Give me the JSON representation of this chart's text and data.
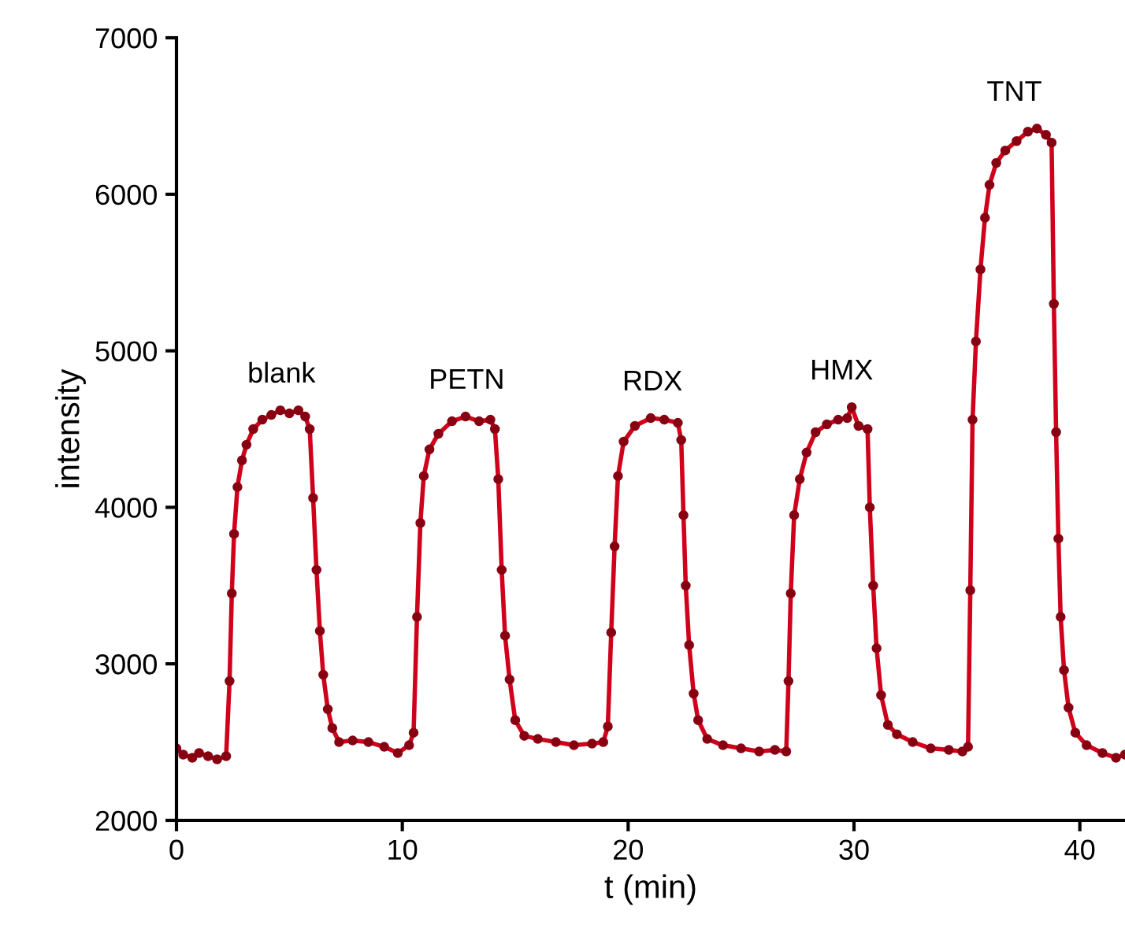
{
  "chart_data": {
    "type": "line",
    "xlabel": "t (min)",
    "ylabel": "intensity",
    "xlim": [
      0,
      42
    ],
    "ylim": [
      2000,
      7000
    ],
    "xticks": [
      0,
      10,
      20,
      30,
      40
    ],
    "yticks": [
      2000,
      3000,
      4000,
      5000,
      6000,
      7000
    ],
    "grid": false,
    "marker": "circle",
    "line_style": "solid",
    "annotations": [
      "blank",
      "PETN",
      "RDX",
      "HMX",
      "TNT"
    ],
    "series": [
      {
        "color": "#d0021b",
        "x": [
          0,
          0.3,
          0.7,
          1.0,
          1.4,
          1.8,
          2.2,
          2.35,
          2.45,
          2.55,
          2.7,
          2.9,
          3.1,
          3.4,
          3.8,
          4.2,
          4.6,
          5.0,
          5.4,
          5.7,
          5.9,
          6.05,
          6.2,
          6.35,
          6.5,
          6.7,
          6.9,
          7.2,
          7.8,
          8.5,
          9.2,
          9.8,
          10.3,
          10.5,
          10.65,
          10.8,
          10.95,
          11.2,
          11.6,
          12.2,
          12.8,
          13.4,
          13.9,
          14.1,
          14.25,
          14.4,
          14.55,
          14.75,
          15.0,
          15.4,
          16.0,
          16.8,
          17.6,
          18.4,
          18.9,
          19.1,
          19.25,
          19.4,
          19.55,
          19.8,
          20.3,
          21.0,
          21.6,
          22.2,
          22.35,
          22.45,
          22.55,
          22.7,
          22.9,
          23.1,
          23.5,
          24.2,
          25.0,
          25.8,
          26.5,
          27.0,
          27.1,
          27.2,
          27.35,
          27.6,
          27.9,
          28.3,
          28.8,
          29.3,
          29.7,
          29.9,
          30.2,
          30.6,
          30.7,
          30.85,
          31.0,
          31.2,
          31.5,
          31.9,
          32.6,
          33.4,
          34.2,
          34.8,
          35.05,
          35.15,
          35.25,
          35.4,
          35.6,
          35.8,
          36.0,
          36.3,
          36.7,
          37.2,
          37.7,
          38.1,
          38.5,
          38.75,
          38.85,
          38.95,
          39.05,
          39.15,
          39.3,
          39.5,
          39.8,
          40.3,
          41.0,
          41.6,
          42.0
        ],
        "values": [
          2460,
          2420,
          2400,
          2430,
          2410,
          2390,
          2410,
          2890,
          3450,
          3830,
          4130,
          4300,
          4400,
          4500,
          4560,
          4590,
          4620,
          4600,
          4620,
          4580,
          4500,
          4060,
          3600,
          3210,
          2930,
          2710,
          2590,
          2500,
          2510,
          2500,
          2470,
          2430,
          2480,
          2560,
          3300,
          3900,
          4200,
          4370,
          4470,
          4550,
          4580,
          4550,
          4560,
          4500,
          4180,
          3600,
          3180,
          2900,
          2640,
          2540,
          2520,
          2500,
          2480,
          2490,
          2500,
          2600,
          3200,
          3750,
          4200,
          4420,
          4520,
          4570,
          4560,
          4540,
          4430,
          3950,
          3500,
          3120,
          2810,
          2640,
          2520,
          2480,
          2460,
          2440,
          2450,
          2440,
          2890,
          3450,
          3950,
          4180,
          4350,
          4480,
          4530,
          4560,
          4570,
          4640,
          4520,
          4500,
          4000,
          3500,
          3100,
          2800,
          2610,
          2550,
          2500,
          2460,
          2450,
          2440,
          2470,
          3470,
          4560,
          5060,
          5520,
          5850,
          6060,
          6200,
          6280,
          6340,
          6400,
          6420,
          6380,
          6330,
          5300,
          4480,
          3800,
          3300,
          2960,
          2720,
          2560,
          2480,
          2430,
          2400,
          2420
        ]
      }
    ]
  }
}
